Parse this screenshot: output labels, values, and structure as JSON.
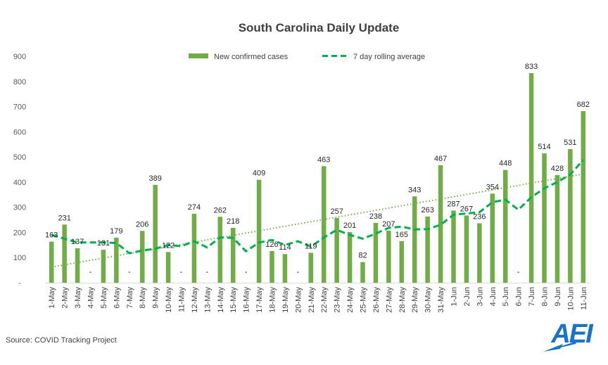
{
  "chart_data": {
    "type": "bar",
    "title": "South Carolina Daily Update",
    "categories": [
      "1-May",
      "2-May",
      "3-May",
      "4-May",
      "5-May",
      "6-May",
      "7-May",
      "8-May",
      "9-May",
      "10-May",
      "11-May",
      "12-May",
      "13-May",
      "14-May",
      "15-May",
      "16-May",
      "17-May",
      "18-May",
      "19-May",
      "20-May",
      "21-May",
      "22-May",
      "23-May",
      "24-May",
      "25-May",
      "26-May",
      "27-May",
      "28-May",
      "29-May",
      "30-May",
      "31-May",
      "1-Jun",
      "2-Jun",
      "3-Jun",
      "4-Jun",
      "5-Jun",
      "6-Jun",
      "7-Jun",
      "8-Jun",
      "9-Jun",
      "10-Jun",
      "11-Jun"
    ],
    "series": [
      {
        "name": "New confirmed cases",
        "type": "bar",
        "color": "#70AD47",
        "values": [
          163,
          231,
          137,
          null,
          131,
          179,
          null,
          206,
          389,
          122,
          null,
          274,
          null,
          262,
          218,
          null,
          409,
          126,
          114,
          null,
          119,
          463,
          257,
          201,
          82,
          238,
          207,
          165,
          343,
          263,
          467,
          287,
          267,
          236,
          354,
          448,
          null,
          833,
          514,
          428,
          531,
          682
        ],
        "labels": [
          "163",
          "231",
          "137",
          "-",
          "131",
          "179",
          "-",
          "206",
          "389",
          "122",
          "-",
          "274",
          "-",
          "262",
          "218",
          "-",
          "409",
          "126",
          "114",
          "-",
          "119",
          "463",
          "257",
          "201",
          "82",
          "238",
          "207",
          "165",
          "343",
          "263",
          "467",
          "287",
          "267",
          "236",
          "354",
          "448",
          "-",
          "833",
          "514",
          "428",
          "531",
          "682"
        ]
      },
      {
        "name": "7 day rolling average",
        "type": "line",
        "style": "dashed",
        "color": "#00B050",
        "values": [
          190,
          175,
          160,
          160,
          160,
          158,
          117,
          128,
          135,
          150,
          145,
          165,
          140,
          180,
          178,
          125,
          160,
          170,
          150,
          165,
          143,
          180,
          210,
          190,
          175,
          195,
          218,
          223,
          212,
          213,
          230,
          270,
          275,
          280,
          320,
          330,
          290,
          340,
          375,
          400,
          430,
          488
        ]
      },
      {
        "name": "trend",
        "type": "trendline",
        "style": "dotted",
        "color": "#70AD47",
        "start": 62,
        "end": 432
      }
    ],
    "ylim": [
      0,
      900
    ],
    "yticks": [
      0,
      100,
      200,
      300,
      400,
      500,
      600,
      700,
      800,
      900
    ],
    "ytick_labels": [
      "-",
      "100",
      "200",
      "300",
      "400",
      "500",
      "600",
      "700",
      "800",
      "900"
    ],
    "xlabel": "",
    "ylabel": "",
    "legend": "top-center",
    "grid": false
  },
  "legend": {
    "bar_label": "New confirmed cases",
    "line_label": "7 day rolling average"
  },
  "source": "Source: COVID Tracking Project",
  "logo_text": "AEI"
}
